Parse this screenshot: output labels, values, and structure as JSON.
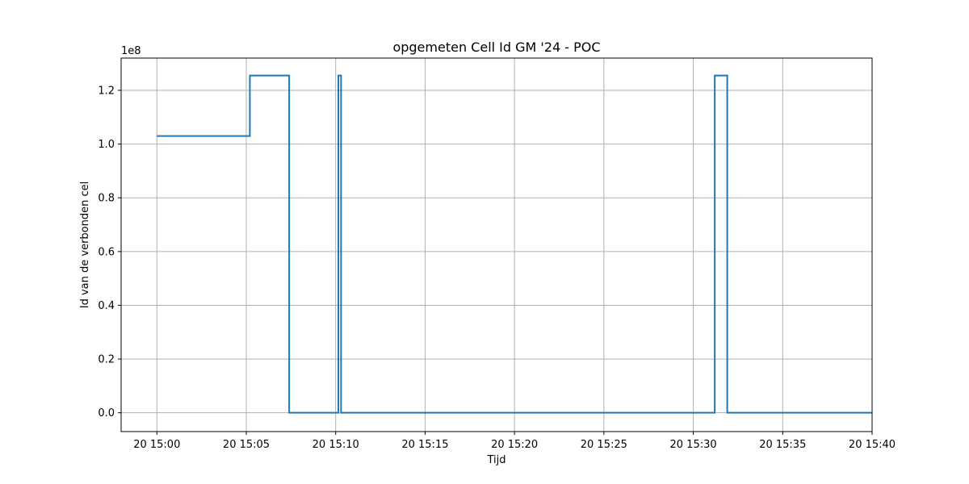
{
  "chart_data": {
    "type": "line",
    "title": "opgemeten Cell Id GM '24 - POC",
    "xlabel": "Tijd",
    "ylabel": "Id van de verbonden cel",
    "y_offset_text": "1e8",
    "y_unit_scale": 100000000,
    "x_unit": "minutes after 20 15:00",
    "xlim": [
      -2,
      40
    ],
    "ylim": [
      -7000000,
      132000000
    ],
    "x_ticks": [
      0,
      5,
      10,
      15,
      20,
      25,
      30,
      35,
      40
    ],
    "x_tick_labels": [
      "20 15:00",
      "20 15:05",
      "20 15:10",
      "20 15:15",
      "20 15:20",
      "20 15:25",
      "20 15:30",
      "20 15:35",
      "20 15:40"
    ],
    "y_ticks": [
      0,
      20000000,
      40000000,
      60000000,
      80000000,
      100000000,
      120000000
    ],
    "y_tick_labels": [
      "0.0",
      "0.2",
      "0.4",
      "0.6",
      "0.8",
      "1.0",
      "1.2"
    ],
    "grid": true,
    "series": [
      {
        "color": "#1f77b4",
        "x": [
          0,
          5.2,
          5.2,
          7.4,
          7.4,
          10.15,
          10.15,
          10.3,
          10.3,
          31.2,
          31.2,
          31.9,
          31.9,
          40
        ],
        "y": [
          103000000,
          103000000,
          125500000,
          125500000,
          0,
          0,
          125500000,
          125500000,
          0,
          0,
          125500000,
          125500000,
          0,
          0
        ]
      }
    ]
  }
}
